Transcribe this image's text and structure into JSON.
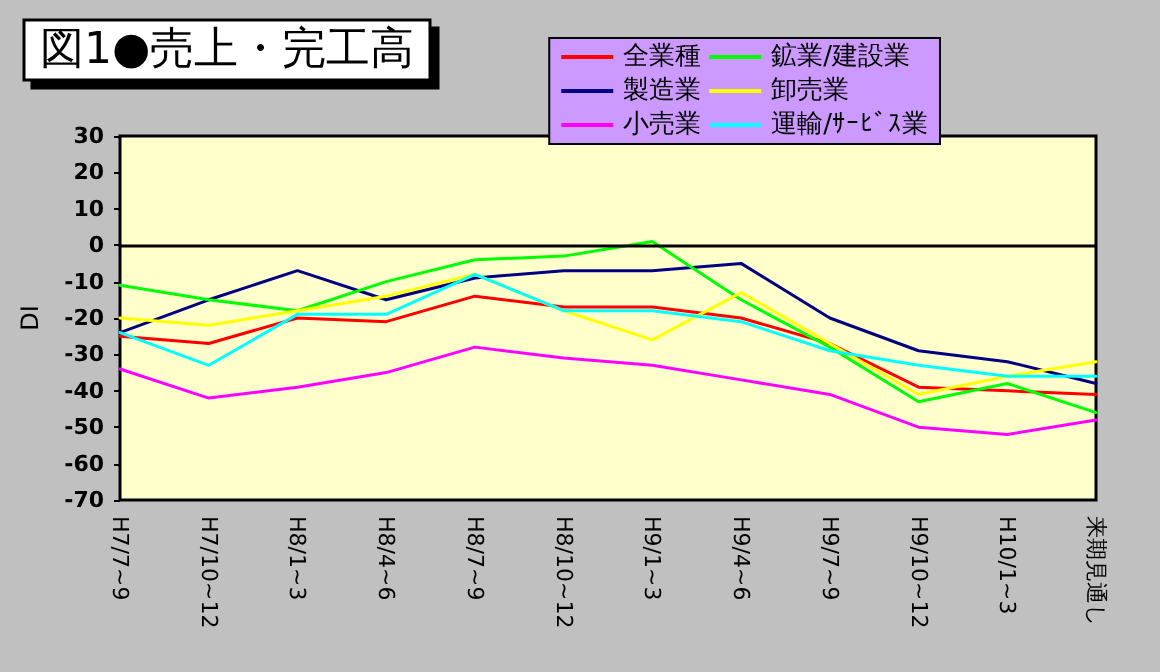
{
  "chart_data": {
    "type": "line",
    "title": "図1●売上・完工高",
    "ylabel": "DI",
    "categories": [
      "H7/7~9",
      "H7/10~12",
      "H8/1~3",
      "H8/4~6",
      "H8/7~9",
      "H8/10~12",
      "H9/1~3",
      "H9/4~6",
      "H9/7~9",
      "H9/10~12",
      "H10/1~3",
      "来期見通し"
    ],
    "series": [
      {
        "name": "全業種",
        "color": "#ff0000",
        "values": [
          -25,
          -27,
          -20,
          -21,
          -14,
          -17,
          -17,
          -20,
          -27,
          -39,
          -40,
          -41
        ]
      },
      {
        "name": "製造業",
        "color": "#000080",
        "values": [
          -24,
          -15,
          -7,
          -15,
          -9,
          -7,
          -7,
          -5,
          -20,
          -29,
          -32,
          -38
        ]
      },
      {
        "name": "小売業",
        "color": "#ff00ff",
        "values": [
          -34,
          -42,
          -39,
          -35,
          -28,
          -31,
          -33,
          -37,
          -41,
          -50,
          -52,
          -48
        ]
      },
      {
        "name": "鉱業/建設業",
        "color": "#00ff00",
        "values": [
          -11,
          -15,
          -18,
          -10,
          -4,
          -3,
          1,
          -15,
          -28,
          -43,
          -38,
          -46
        ]
      },
      {
        "name": "卸売業",
        "color": "#ffff00",
        "values": [
          -20,
          -22,
          -18,
          -14,
          -8,
          -18,
          -26,
          -13,
          -27,
          -41,
          -36,
          -32
        ]
      },
      {
        "name": "運輸/ｻｰﾋﾞｽ業",
        "color": "#00ffff",
        "values": [
          -24,
          -33,
          -19,
          -19,
          -8,
          -18,
          -18,
          -21,
          -29,
          -33,
          -36,
          -36
        ]
      }
    ],
    "ylim": [
      -70,
      30
    ],
    "yticks": [
      -70,
      -60,
      -50,
      -40,
      -30,
      -20,
      -10,
      0,
      10,
      20,
      30
    ],
    "ref_lines": [
      {
        "axis": "y",
        "value": 0,
        "color": "#000000"
      }
    ],
    "grid": false,
    "legend": "top right",
    "marker": "none",
    "line_style": "solid"
  }
}
